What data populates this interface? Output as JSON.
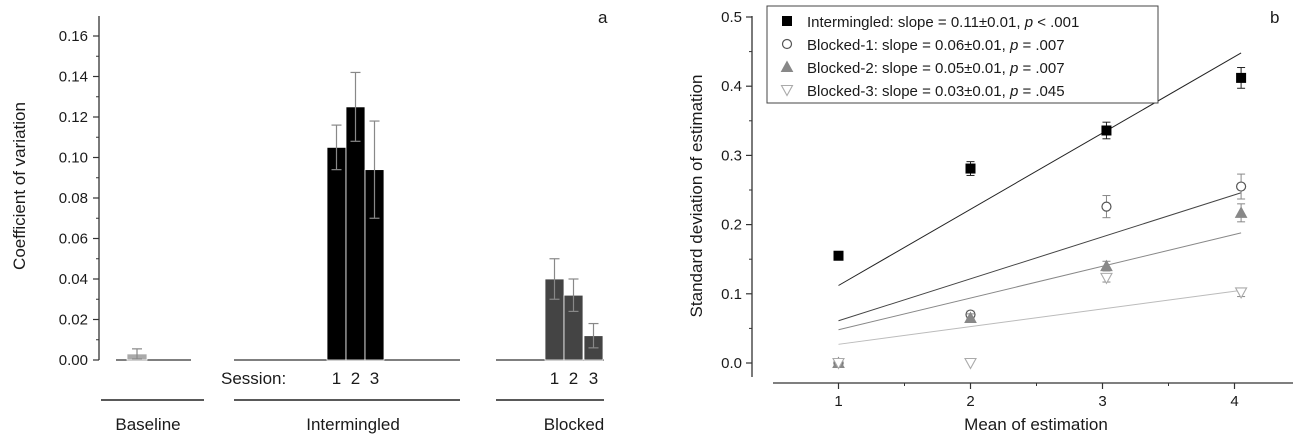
{
  "chart_data": [
    {
      "panel": "a",
      "type": "bar",
      "ylabel": "Coefficient of variation",
      "ylim": [
        0,
        0.17
      ],
      "yticks": [
        "0.00",
        "0.02",
        "0.04",
        "0.06",
        "0.08",
        "0.10",
        "0.12",
        "0.14",
        "0.16"
      ],
      "session_label": "Session:",
      "groups": [
        {
          "name": "Baseline",
          "sessions": [
            ""
          ],
          "values": [
            0.003
          ],
          "errors": [
            0.0025
          ],
          "color": "#aaaaaa"
        },
        {
          "name": "Intermingled",
          "sessions": [
            "1",
            "2",
            "3"
          ],
          "values": [
            0.105,
            0.125,
            0.094
          ],
          "errors": [
            0.011,
            0.017,
            0.024
          ],
          "color": "#000000"
        },
        {
          "name": "Blocked",
          "sessions": [
            "1",
            "2",
            "3"
          ],
          "values": [
            0.04,
            0.032,
            0.012
          ],
          "errors": [
            0.01,
            0.008,
            0.006
          ],
          "color": "#444444"
        }
      ],
      "grid": false
    },
    {
      "panel": "b",
      "type": "scatter",
      "xlabel": "Mean of estimation",
      "ylabel": "Standard deviation of estimation",
      "xlim": [
        0.3,
        4.6
      ],
      "ylim": [
        -0.03,
        0.5
      ],
      "xticks": [
        "1",
        "2",
        "3",
        "4"
      ],
      "yticks": [
        "0.0",
        "0.1",
        "0.2",
        "0.3",
        "0.4",
        "0.5"
      ],
      "legend_position": "top-left",
      "grid": false,
      "series": [
        {
          "name": "Intermingled",
          "legend_text": "Intermingled: slope = 0.11±0.01, ",
          "p_label": "p",
          "p_text": " < .001",
          "marker": "square",
          "fill": "#000000",
          "stroke": "#000000",
          "line_color": "#222222",
          "x": [
            1.0,
            2.0,
            3.03,
            4.05
          ],
          "y": [
            0.155,
            0.281,
            0.336,
            0.412
          ],
          "err": [
            0.0,
            0.01,
            0.012,
            0.015
          ],
          "fit_y": [
            0.112,
            0.448
          ]
        },
        {
          "name": "Blocked-1",
          "legend_text": "Blocked-1: slope = 0.06±0.01, ",
          "p_label": "p",
          "p_text": " = .007",
          "marker": "circle",
          "fill": "#ffffff",
          "stroke": "#555555",
          "line_color": "#444444",
          "x": [
            1.0,
            2.0,
            3.03,
            4.05
          ],
          "y": [
            0.0,
            0.07,
            0.226,
            0.255
          ],
          "err": [
            0.0,
            0.005,
            0.016,
            0.018
          ],
          "fit_y": [
            0.061,
            0.246
          ]
        },
        {
          "name": "Blocked-2",
          "legend_text": "Blocked-2: slope = 0.05±0.01, ",
          "p_label": "p",
          "p_text": " = .007",
          "marker": "triangle-up",
          "fill": "#888888",
          "stroke": "#888888",
          "line_color": "#888888",
          "x": [
            1.0,
            2.0,
            3.03,
            4.05
          ],
          "y": [
            0.0,
            0.065,
            0.14,
            0.217
          ],
          "err": [
            0.0,
            0.006,
            0.007,
            0.013
          ],
          "fit_y": [
            0.048,
            0.188
          ]
        },
        {
          "name": "Blocked-3",
          "legend_text": "Blocked-3: slope = 0.03±0.01, ",
          "p_label": "p",
          "p_text": " = .045",
          "marker": "triangle-down",
          "fill": "#ffffff",
          "stroke": "#aaaaaa",
          "line_color": "#bbbbbb",
          "x": [
            1.0,
            2.0,
            3.03,
            4.05
          ],
          "y": [
            0.0,
            0.0,
            0.123,
            0.102
          ],
          "err": [
            0.0,
            0.0,
            0.006,
            0.006
          ],
          "fit_y": [
            0.027,
            0.105
          ]
        }
      ]
    }
  ]
}
